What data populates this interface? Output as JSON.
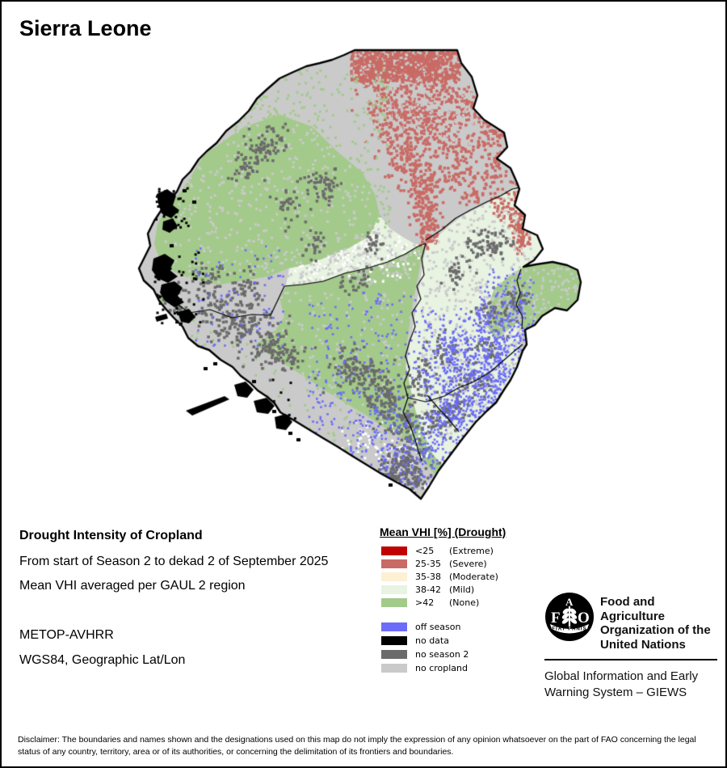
{
  "page": {
    "title": "Sierra Leone"
  },
  "colors": {
    "extreme": "#c10000",
    "severe": "#c96b65",
    "moderate": "#fdf0d3",
    "mild": "#e8f3e2",
    "none": "#a3ca8b",
    "off_season": "#6c6cf8",
    "no_data": "#000000",
    "no_season2": "#6b6b6b",
    "no_cropland": "#cacaca",
    "outline": "#000000",
    "white": "#ffffff"
  },
  "subtitle": {
    "line1": "Drought Intensity of Cropland",
    "line2": "From start of Season 2 to dekad 2 of September 2025",
    "line3": "Mean VHI averaged per GAUL 2 region",
    "sensor": "METOP-AVHRR",
    "projection": "WGS84, Geographic Lat/Lon"
  },
  "legend": {
    "title": "Mean VHI [%] (Drought)",
    "items": [
      {
        "value": "<25",
        "qualifier": "(Extreme)",
        "color": "extreme"
      },
      {
        "value": "25-35",
        "qualifier": "(Severe)",
        "color": "severe"
      },
      {
        "value": "35-38",
        "qualifier": "(Moderate)",
        "color": "moderate"
      },
      {
        "value": "38-42",
        "qualifier": "(Mild)",
        "color": "mild"
      },
      {
        "value": ">42",
        "qualifier": "(None)",
        "color": "none"
      }
    ],
    "extra_items": [
      {
        "label": "off season",
        "color": "off_season"
      },
      {
        "label": "no data",
        "color": "no_data"
      },
      {
        "label": "no season 2",
        "color": "no_season2"
      },
      {
        "label": "no cropland",
        "color": "no_cropland"
      }
    ]
  },
  "fao": {
    "acronym_f": "F",
    "acronym_a": "A",
    "acronym_o": "O",
    "motto": "FIAT PANIS",
    "org_line1": "Food and Agriculture",
    "org_line2": "Organization of the",
    "org_line3": "United Nations",
    "giews_line1": "Global Information and Early",
    "giews_line2": "Warning System – GIEWS"
  },
  "disclaimer": "Disclaimer: The boundaries and names shown and the designations used on this map do not imply the expression of any opinion whatsoever on the part of FAO concerning the legal status of any country, territory, area or of its authorities, or concerning the delimitation of its frontiers and boundaries."
}
